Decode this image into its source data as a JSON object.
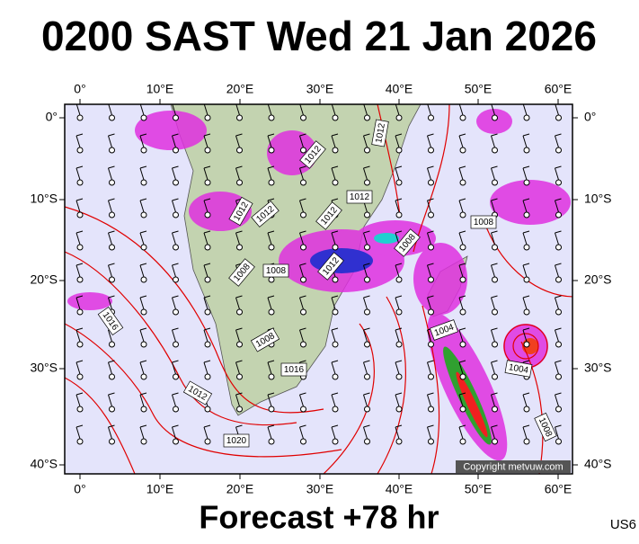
{
  "title": "0200 SAST Wed 21 Jan 2026",
  "footer": "Forecast +78 hr",
  "code": "US6",
  "copyright": "Copyright metvuw.com",
  "map": {
    "lon_labels": [
      "0°",
      "10°E",
      "20°E",
      "30°E",
      "40°E",
      "50°E",
      "60°E"
    ],
    "lat_labels": [
      "0°",
      "10°S",
      "20°S",
      "30°S",
      "40°S"
    ],
    "isobar_labels": [
      "1012",
      "1012",
      "1012",
      "1012",
      "1012",
      "1012",
      "1012",
      "1008",
      "1008",
      "1008",
      "1008",
      "1008",
      "1016",
      "1004",
      "1004",
      "1008",
      "1016",
      "1012",
      "1020"
    ]
  }
}
